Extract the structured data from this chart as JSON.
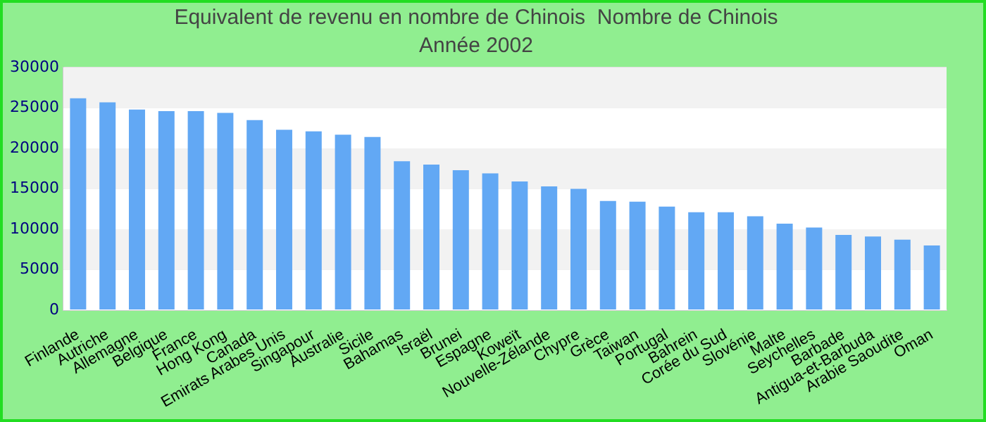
{
  "chart_data": {
    "type": "bar",
    "title": "Equivalent de revenu en nombre de Chinois  Nombre de Chinois",
    "subtitle": "Année 2002",
    "categories": [
      "Finlande",
      "Autriche",
      "Allemagne",
      "Belgique",
      "France",
      "Hong Kong",
      "Canada",
      "Emirats Arabes Unis",
      "Singapour",
      "Australie",
      "Sicile",
      "Bahamas",
      "Israël",
      "Brunei",
      "Espagne",
      "Koweït",
      "Nouvelle-Zélande",
      "Chypre",
      "Grèce",
      "Taiwan",
      "Portugal",
      "Bahrein",
      "Corée du Sud",
      "Slovénie",
      "Malte",
      "Seychelles",
      "Barbade",
      "Antigua-et-Barbuda",
      "Arabie Saoudite",
      "Oman"
    ],
    "values": [
      26200,
      25700,
      24800,
      24600,
      24600,
      24400,
      23500,
      22300,
      22100,
      21700,
      21400,
      18400,
      18000,
      17300,
      16900,
      15900,
      15300,
      15000,
      13500,
      13400,
      12800,
      12100,
      12100,
      11600,
      10700,
      10200,
      9300,
      9100,
      8700,
      8000
    ],
    "color": "#62a8f4",
    "ylim": [
      0,
      30000
    ],
    "yticks": [
      0,
      5000,
      10000,
      15000,
      20000,
      25000,
      30000
    ],
    "grid": "y"
  }
}
